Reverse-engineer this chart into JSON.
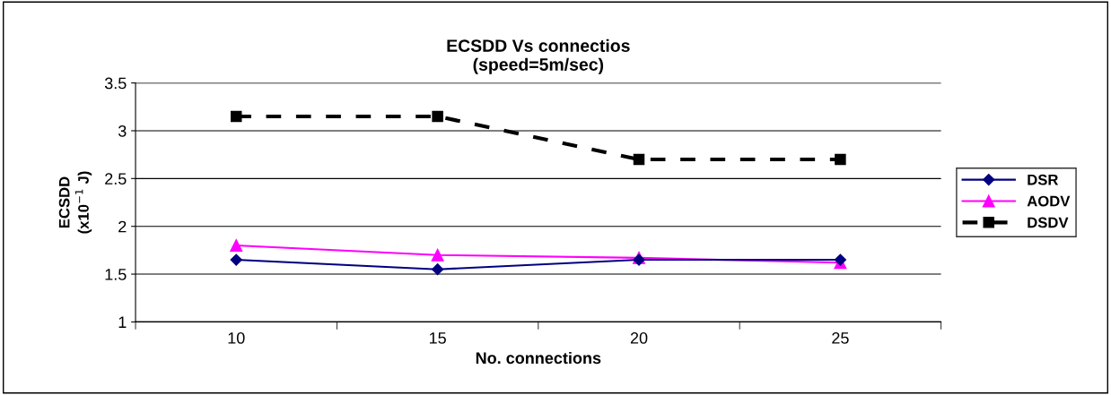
{
  "chart_data": {
    "type": "line",
    "title": "ECSDD Vs connectios\n(speed=5m/sec)",
    "xlabel": "No. connections",
    "ylabel": "ECSDD\n(x10$^{−1}$ J)",
    "categories": [
      "10",
      "15",
      "20",
      "25"
    ],
    "series": [
      {
        "name": "DSR",
        "color": "#000080",
        "values": [
          1.65,
          1.55,
          1.65,
          1.65
        ],
        "marker": "diamond",
        "line_style": "solid"
      },
      {
        "name": "AODV",
        "color": "#ff00ff",
        "values": [
          1.8,
          1.7,
          1.67,
          1.62
        ],
        "marker": "triangle",
        "line_style": "solid"
      },
      {
        "name": "DSDV",
        "color": "#000000",
        "values": [
          3.15,
          3.15,
          2.7,
          2.7
        ],
        "marker": "square",
        "line_style": "dashed"
      }
    ],
    "ylim": [
      1,
      3.5
    ],
    "yticks": [
      1,
      1.5,
      2,
      2.5,
      3,
      3.5
    ],
    "grid": "y",
    "legend": "right"
  }
}
